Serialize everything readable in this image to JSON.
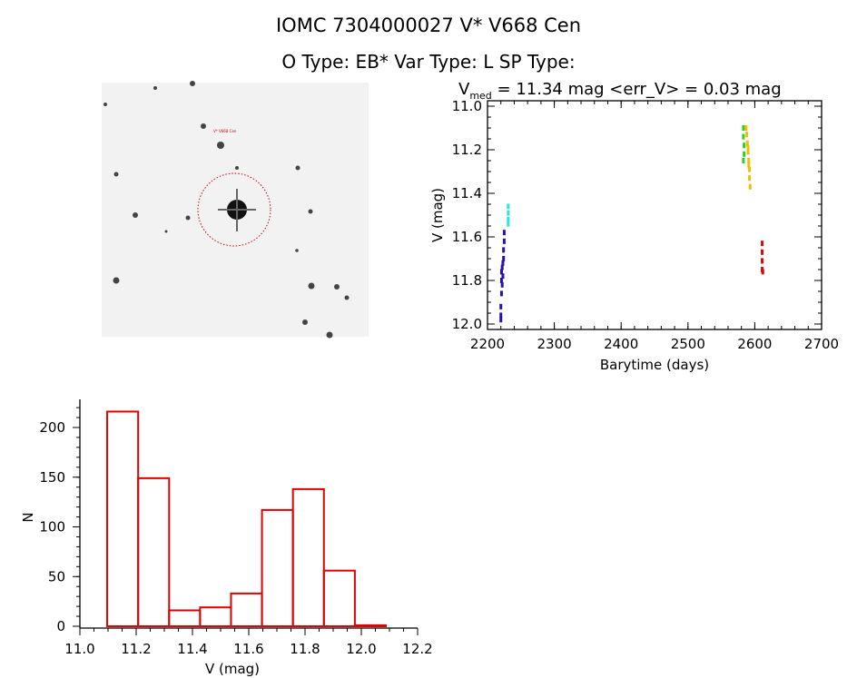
{
  "header": {
    "title_line1": "IOMC 7304000027    V* V668 Cen",
    "title_line2": "O Type: EB*   Var Type: L   SP Type:"
  },
  "image_panel": {
    "target_label": "V* V668 Cen"
  },
  "chart_data": [
    {
      "type": "scatter",
      "title_prefix": "V",
      "title_sub": "med",
      "title_rest": " = 11.34 mag <err_V> = 0.03 mag",
      "xlabel": "Barytime (days)",
      "ylabel": "V (mag)",
      "xlim": [
        2200,
        2700
      ],
      "ylim": [
        12.0,
        11.0
      ],
      "xticks": [
        "2200",
        "2300",
        "2400",
        "2500",
        "2600",
        "2700"
      ],
      "yticks": [
        "11.0",
        "11.2",
        "11.4",
        "11.6",
        "11.8",
        "12.0"
      ],
      "series": [
        {
          "name": "segment-1",
          "color": "#2a10b0",
          "points": [
            [
              2220,
              11.98
            ],
            [
              2220,
              11.92
            ],
            [
              2221,
              11.86
            ],
            [
              2221,
              11.8
            ],
            [
              2221,
              11.76
            ],
            [
              2222,
              11.74
            ],
            [
              2223,
              11.72
            ],
            [
              2224,
              11.7
            ],
            [
              2224,
              11.66
            ],
            [
              2225,
              11.62
            ],
            [
              2225,
              11.58
            ],
            [
              2220,
              11.96
            ],
            [
              2222,
              11.82
            ],
            [
              2223,
              11.78
            ]
          ]
        },
        {
          "name": "segment-2",
          "color": "#30e0e0",
          "points": [
            [
              2231,
              11.46
            ],
            [
              2231,
              11.49
            ],
            [
              2231,
              11.52
            ],
            [
              2231,
              11.54
            ]
          ]
        },
        {
          "name": "segment-3",
          "color": "#30d020",
          "points": [
            [
              2583,
              11.1
            ],
            [
              2583,
              11.14
            ],
            [
              2584,
              11.18
            ],
            [
              2584,
              11.22
            ],
            [
              2583,
              11.25
            ]
          ]
        },
        {
          "name": "segment-4",
          "color": "#f0c000",
          "points": [
            [
              2587,
              11.1
            ],
            [
              2588,
              11.13
            ],
            [
              2589,
              11.17
            ],
            [
              2590,
              11.21
            ],
            [
              2591,
              11.25
            ],
            [
              2592,
              11.29
            ],
            [
              2592,
              11.33
            ],
            [
              2593,
              11.37
            ],
            [
              2590,
              11.19
            ],
            [
              2591,
              11.27
            ]
          ]
        },
        {
          "name": "segment-5",
          "color": "#d01010",
          "points": [
            [
              2611,
              11.63
            ],
            [
              2611,
              11.67
            ],
            [
              2611,
              11.71
            ],
            [
              2611,
              11.75
            ],
            [
              2612,
              11.76
            ]
          ]
        }
      ]
    },
    {
      "type": "bar",
      "xlabel": "V (mag)",
      "ylabel": "N",
      "xlim": [
        11.0,
        12.2
      ],
      "ylim": [
        0,
        228
      ],
      "xticks": [
        "11.0",
        "11.2",
        "11.4",
        "11.6",
        "11.8",
        "12.0",
        "12.2"
      ],
      "yticks": [
        "0",
        "50",
        "100",
        "150",
        "200"
      ],
      "bin_edges": [
        11.097,
        11.207,
        11.317,
        11.427,
        11.537,
        11.647,
        11.757,
        11.867,
        11.977,
        12.087
      ],
      "values": [
        216,
        149,
        16,
        19,
        33,
        117,
        138,
        56,
        1
      ],
      "color": "#e00000"
    }
  ]
}
